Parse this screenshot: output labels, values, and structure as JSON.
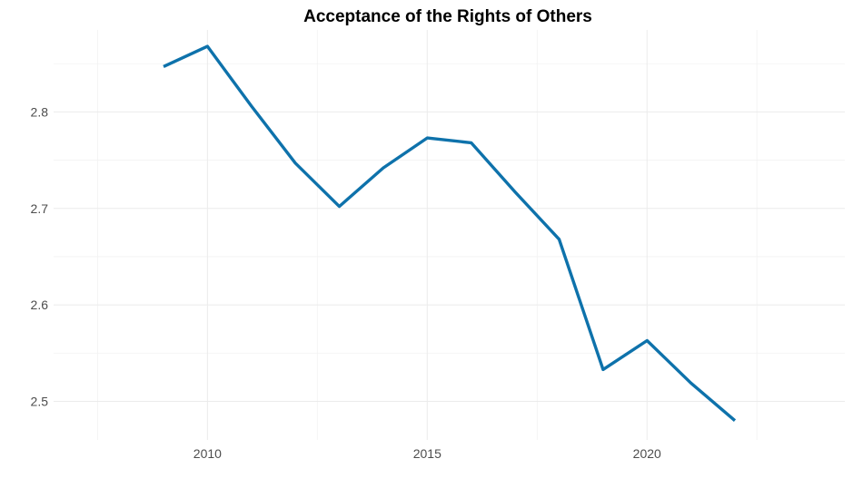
{
  "chart_data": {
    "type": "line",
    "title": "Acceptance of the Rights of Others",
    "xlabel": "",
    "ylabel": "",
    "x": [
      2009,
      2010,
      2011,
      2012,
      2013,
      2014,
      2015,
      2016,
      2017,
      2018,
      2019,
      2020,
      2021,
      2022
    ],
    "series": [
      {
        "values": [
          2.847,
          2.868,
          2.806,
          2.747,
          2.702,
          2.742,
          2.773,
          2.768,
          2.717,
          2.668,
          2.533,
          2.563,
          2.519,
          2.48
        ]
      }
    ],
    "xlim": [
      2006.5,
      2024.5
    ],
    "ylim": [
      2.46,
      2.885
    ],
    "x_ticks": [
      2010,
      2015,
      2020
    ],
    "x_tick_labels": [
      "2010",
      "2015",
      "2020"
    ],
    "y_ticks": [
      2.5,
      2.6,
      2.7,
      2.8
    ],
    "y_tick_labels": [
      "2.5",
      "2.6",
      "2.7",
      "2.8"
    ],
    "grid": true,
    "legend": "none",
    "colors": {
      "line": "#0e72ab",
      "grid": "#ebebeb",
      "text": "#4d4d4d"
    }
  }
}
